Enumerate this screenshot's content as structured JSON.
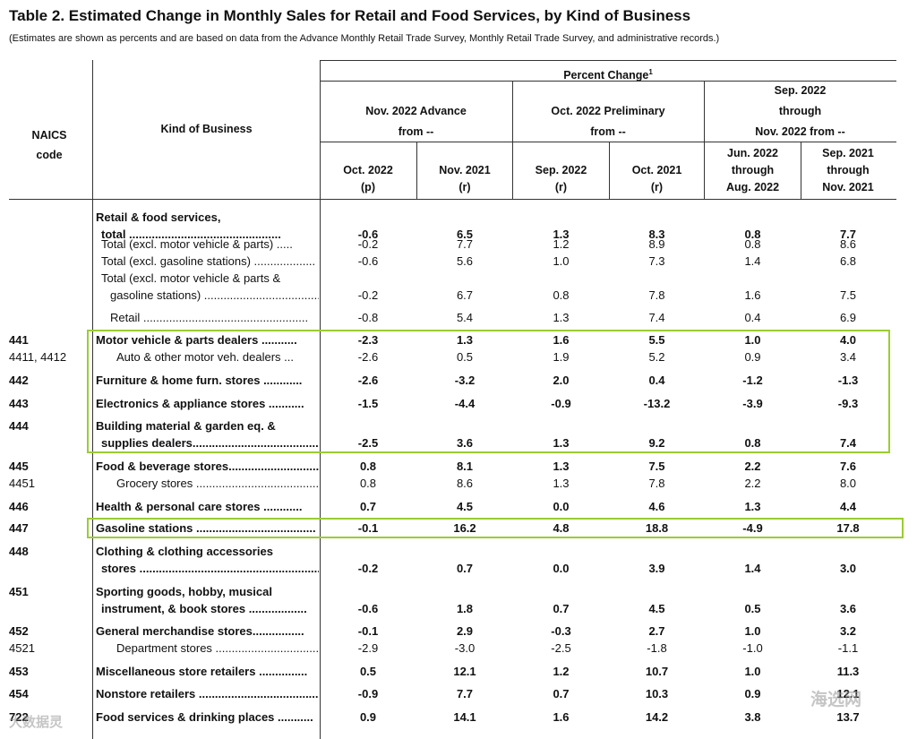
{
  "title": "Table 2.  Estimated Change in Monthly Sales for Retail and Food Services, by Kind of Business",
  "subtitle": "(Estimates are shown as percents and are based on data from the Advance Monthly Retail Trade Survey,  Monthly Retail Trade Survey, and administrative records.)",
  "headers": {
    "naics": [
      "NAICS",
      "code"
    ],
    "kind": "Kind of Business",
    "percent_change": "Percent Change",
    "footnote": "1",
    "groups": [
      [
        "Nov. 2022 Advance",
        "from --"
      ],
      [
        "Oct. 2022 Preliminary",
        "from --"
      ],
      [
        "Sep. 2022",
        "through",
        "Nov. 2022 from --"
      ]
    ],
    "columns": [
      [
        "Oct. 2022",
        "(p)"
      ],
      [
        "Nov. 2021",
        "(r)"
      ],
      [
        "Sep. 2022",
        "(r)"
      ],
      [
        "Oct. 2021",
        "(r)"
      ],
      [
        "Jun. 2022",
        "through",
        "Aug. 2022"
      ],
      [
        "Sep. 2021",
        "through",
        "Nov. 2021"
      ]
    ]
  },
  "rows": [
    {
      "code": "",
      "lines": [
        "Retail & food services,",
        "total ..............................................."
      ],
      "values": [
        "-0.6",
        "6.5",
        "1.3",
        "8.3",
        "0.8",
        "7.7"
      ],
      "bold": true
    },
    {
      "code": "",
      "lines": [
        "Total (excl. motor vehicle & parts) ....."
      ],
      "values": [
        "-0.2",
        "7.7",
        "1.2",
        "8.9",
        "0.8",
        "8.6"
      ],
      "bold": false
    },
    {
      "code": "",
      "lines": [
        "Total (excl. gasoline stations) ..................."
      ],
      "values": [
        "-0.6",
        "5.6",
        "1.0",
        "7.3",
        "1.4",
        "6.8"
      ],
      "bold": false
    },
    {
      "code": "",
      "lines": [
        "Total (excl. motor vehicle & parts &",
        "gasoline stations) ....................................."
      ],
      "values": [
        "-0.2",
        "6.7",
        "0.8",
        "7.8",
        "1.6",
        "7.5"
      ],
      "bold": false
    },
    {
      "code": "",
      "lines": [
        "Retail ..................................................."
      ],
      "values": [
        "-0.8",
        "5.4",
        "1.3",
        "7.4",
        "0.4",
        "6.9"
      ],
      "bold": false
    },
    {
      "code": "441",
      "lines": [
        "Motor vehicle & parts dealers ..........."
      ],
      "values": [
        "-2.3",
        "1.3",
        "1.6",
        "5.5",
        "1.0",
        "4.0"
      ],
      "bold": true
    },
    {
      "code": "4411, 4412",
      "lines": [
        "Auto & other motor veh. dealers ..."
      ],
      "values": [
        "-2.6",
        "0.5",
        "1.9",
        "5.2",
        "0.9",
        "3.4"
      ],
      "bold": false
    },
    {
      "code": "442",
      "lines": [
        "Furniture & home furn. stores ............"
      ],
      "values": [
        "-2.6",
        "-3.2",
        "2.0",
        "0.4",
        "-1.2",
        "-1.3"
      ],
      "bold": true
    },
    {
      "code": "443",
      "lines": [
        "Electronics & appliance stores ..........."
      ],
      "values": [
        "-1.5",
        "-4.4",
        "-0.9",
        "-13.2",
        "-3.9",
        "-9.3"
      ],
      "bold": true
    },
    {
      "code": "444",
      "lines": [
        "Building material & garden eq. &",
        "supplies dealers........................................"
      ],
      "values": [
        "-2.5",
        "3.6",
        "1.3",
        "9.2",
        "0.8",
        "7.4"
      ],
      "bold": true
    },
    {
      "code": "445",
      "lines": [
        "Food & beverage stores............................"
      ],
      "values": [
        "0.8",
        "8.1",
        "1.3",
        "7.5",
        "2.2",
        "7.6"
      ],
      "bold": true
    },
    {
      "code": "4451",
      "lines": [
        "Grocery stores .........................................."
      ],
      "values": [
        "0.8",
        "8.6",
        "1.3",
        "7.8",
        "2.2",
        "8.0"
      ],
      "bold": false
    },
    {
      "code": "446",
      "lines": [
        "Health & personal care stores ............"
      ],
      "values": [
        "0.7",
        "4.5",
        "0.0",
        "4.6",
        "1.3",
        "4.4"
      ],
      "bold": true
    },
    {
      "code": "447",
      "lines": [
        "Gasoline stations ....................................."
      ],
      "values": [
        "-0.1",
        "16.2",
        "4.8",
        "18.8",
        "-4.9",
        "17.8"
      ],
      "bold": true
    },
    {
      "code": "448",
      "lines": [
        "Clothing & clothing accessories",
        "stores ............................................................"
      ],
      "values": [
        "-0.2",
        "0.7",
        "0.0",
        "3.9",
        "1.4",
        "3.0"
      ],
      "bold": true
    },
    {
      "code": "451",
      "lines": [
        "Sporting goods, hobby, musical",
        "instrument, & book stores .................."
      ],
      "values": [
        "-0.6",
        "1.8",
        "0.7",
        "4.5",
        "0.5",
        "3.6"
      ],
      "bold": true
    },
    {
      "code": "452",
      "lines": [
        "General merchandise stores................"
      ],
      "values": [
        "-0.1",
        "2.9",
        "-0.3",
        "2.7",
        "1.0",
        "3.2"
      ],
      "bold": true
    },
    {
      "code": "4521",
      "lines": [
        "Department stores ................................"
      ],
      "values": [
        "-2.9",
        "-3.0",
        "-2.5",
        "-1.8",
        "-1.0",
        "-1.1"
      ],
      "bold": false
    },
    {
      "code": "453",
      "lines": [
        "Miscellaneous store retailers ..............."
      ],
      "values": [
        "0.5",
        "12.1",
        "1.2",
        "10.7",
        "1.0",
        "11.3"
      ],
      "bold": true
    },
    {
      "code": "454",
      "lines": [
        "Nonstore retailers ....................................."
      ],
      "values": [
        "-0.9",
        "7.7",
        "0.7",
        "10.3",
        "0.9",
        "12.1"
      ],
      "bold": true
    },
    {
      "code": "722",
      "lines": [
        "Food services & drinking places ..........."
      ],
      "values": [
        "0.9",
        "14.1",
        "1.6",
        "14.2",
        "3.8",
        "13.7"
      ],
      "bold": true
    }
  ],
  "watermarks": {
    "left": "大数据灵",
    "right": "海选网"
  }
}
